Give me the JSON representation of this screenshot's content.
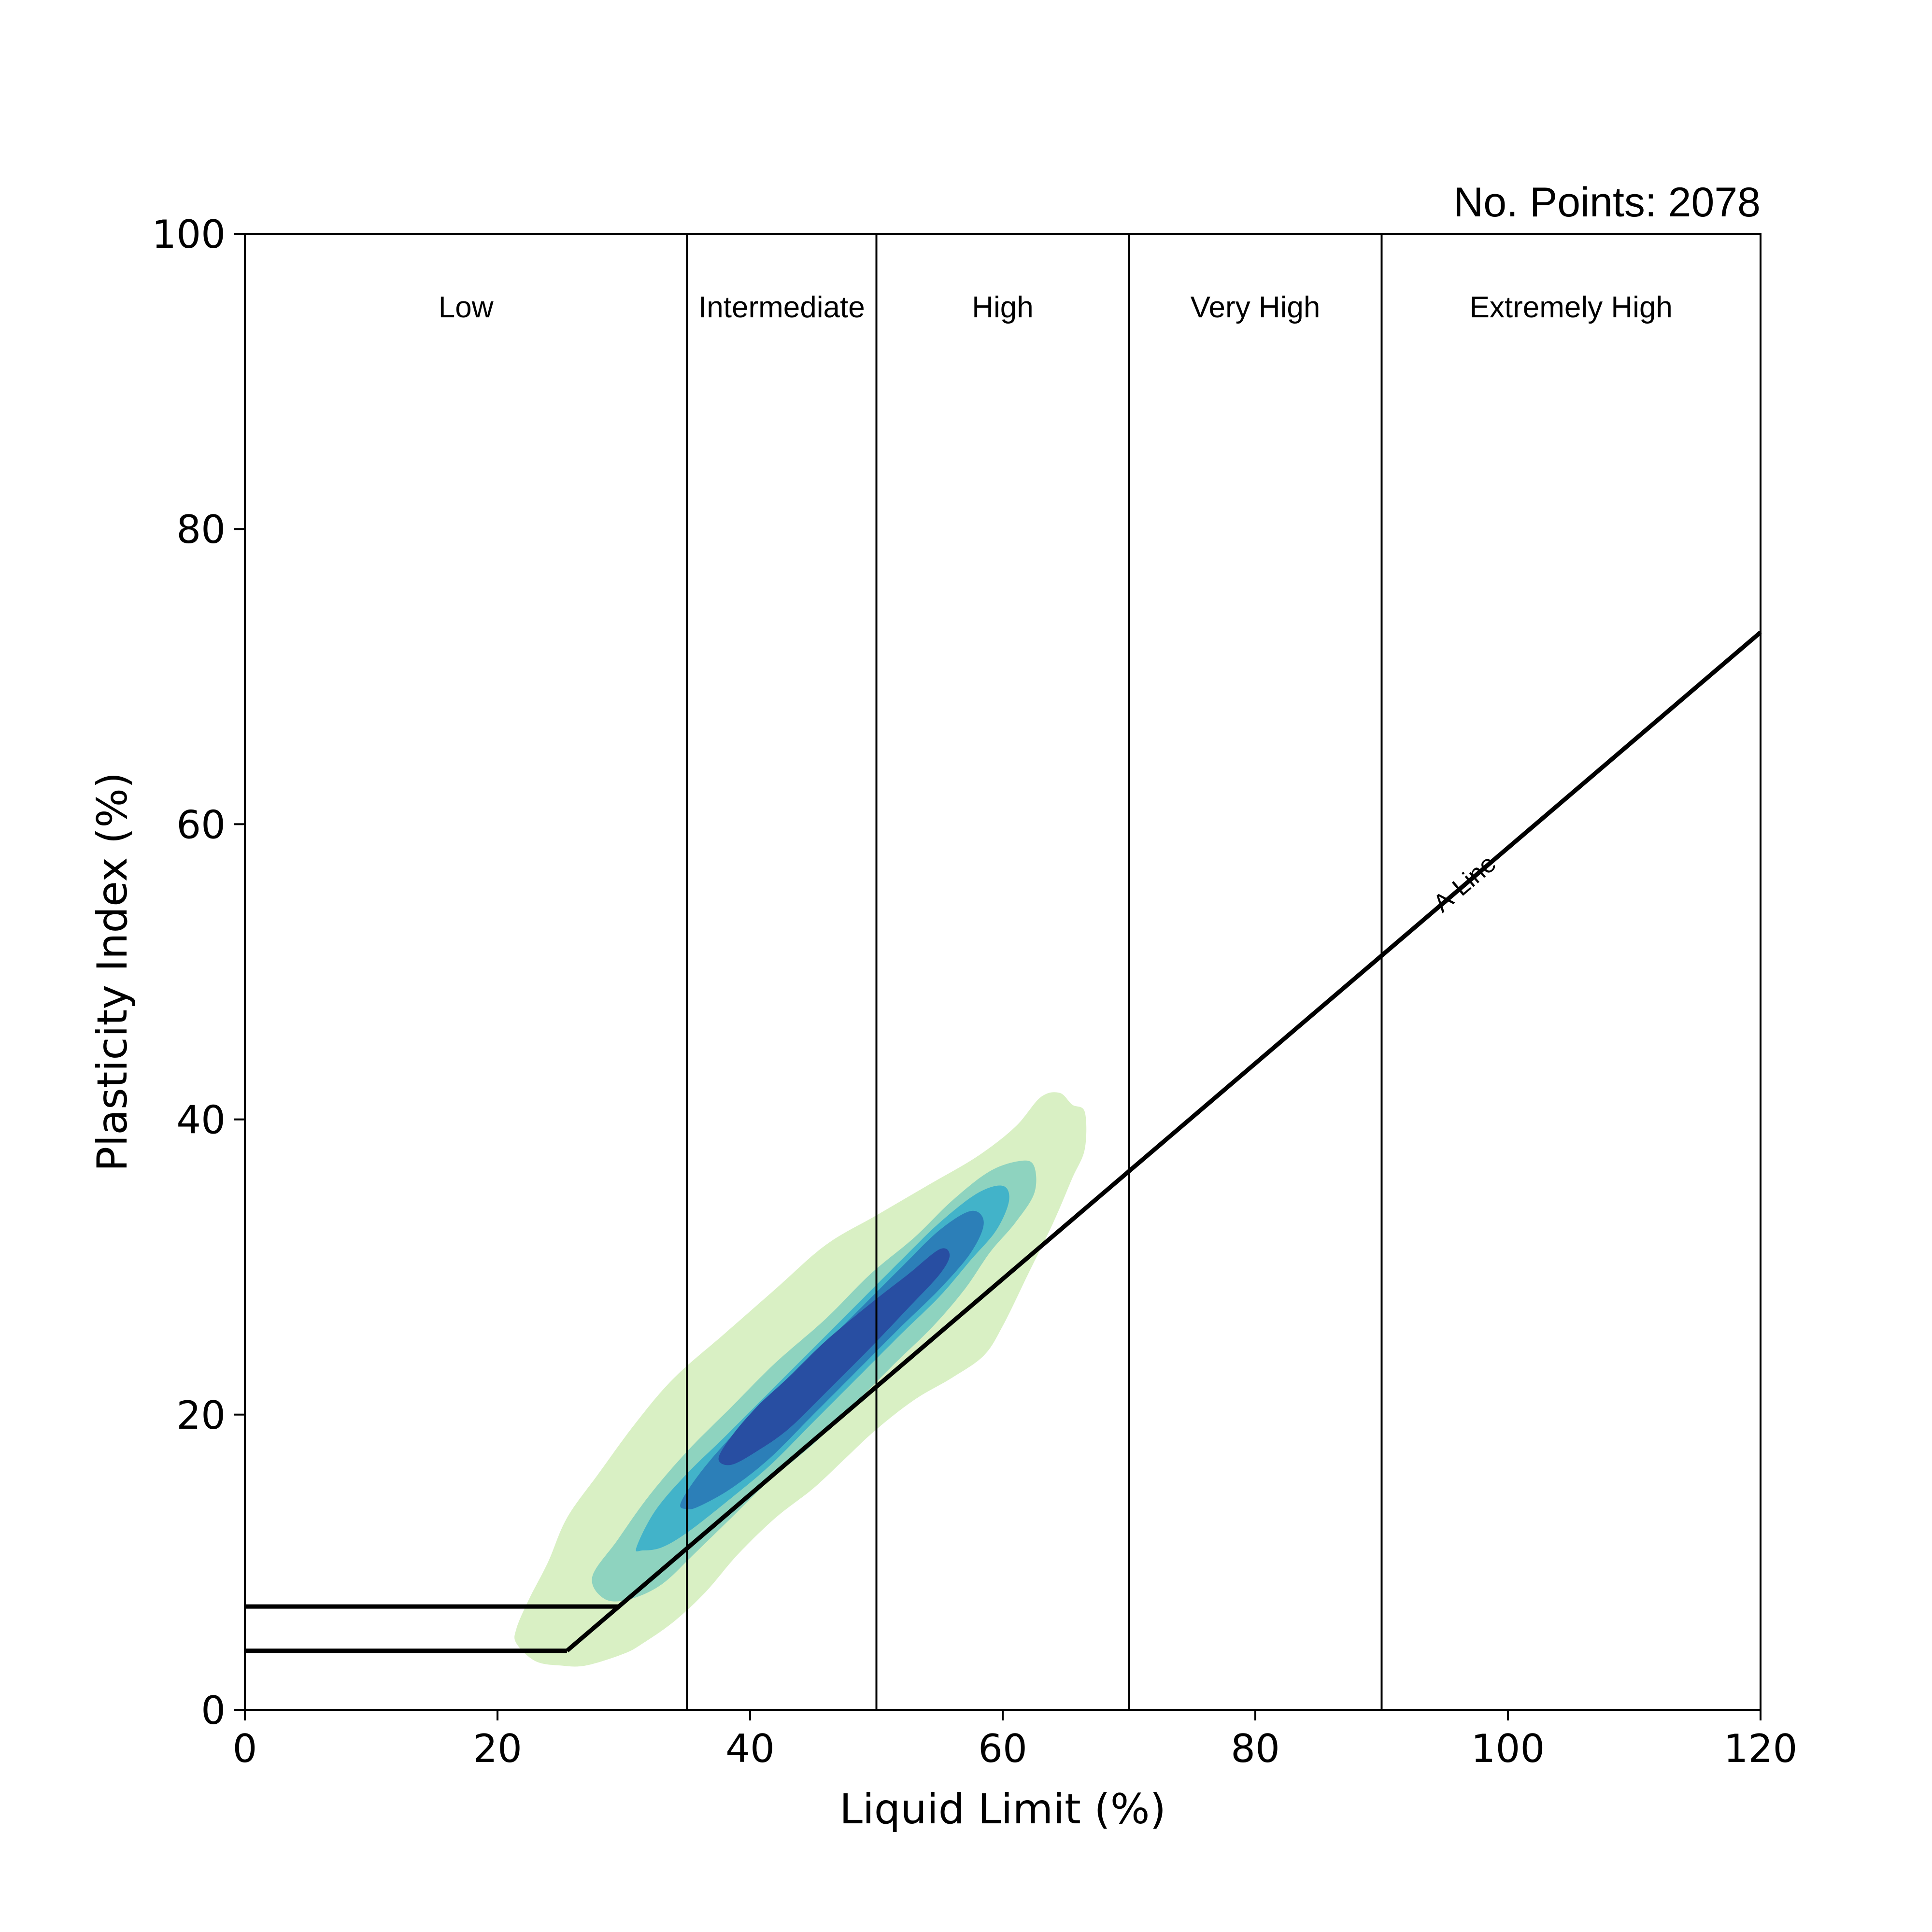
{
  "chart_data": {
    "type": "contour",
    "xlabel": "Liquid Limit (%)",
    "ylabel": "Plasticity Index (%)",
    "xlim": [
      0,
      120
    ],
    "ylim": [
      0,
      100
    ],
    "xticks": [
      0,
      20,
      40,
      60,
      80,
      100,
      120
    ],
    "yticks": [
      0,
      20,
      40,
      60,
      80,
      100
    ],
    "grid": false,
    "annotation": "No. Points: 2078",
    "regions": [
      {
        "label": "Low",
        "x_from": 0,
        "x_to": 35
      },
      {
        "label": "Intermediate",
        "x_from": 35,
        "x_to": 50
      },
      {
        "label": "High",
        "x_from": 50,
        "x_to": 70
      },
      {
        "label": "Very High",
        "x_from": 70,
        "x_to": 90
      },
      {
        "label": "Extremely High",
        "x_from": 90,
        "x_to": 120
      }
    ],
    "region_boundaries_x": [
      35,
      50,
      70,
      90
    ],
    "a_line": {
      "label": "A-Line",
      "points": [
        [
          25.5,
          4
        ],
        [
          120,
          73
        ]
      ]
    },
    "zone_lines": [
      {
        "points": [
          [
            0,
            7
          ],
          [
            29.6,
            7
          ]
        ]
      },
      {
        "points": [
          [
            0,
            4
          ],
          [
            25.5,
            4
          ]
        ]
      }
    ],
    "density_levels": [
      {
        "color": "#d9f0c4",
        "points": [
          [
            21.5,
            5.5
          ],
          [
            22.5,
            7.5
          ],
          [
            24,
            10
          ],
          [
            25.5,
            13
          ],
          [
            28,
            16
          ],
          [
            31,
            19.5
          ],
          [
            34,
            22.5
          ],
          [
            38,
            25.5
          ],
          [
            42,
            28.5
          ],
          [
            46,
            31.5
          ],
          [
            50,
            33.5
          ],
          [
            54,
            35.5
          ],
          [
            58,
            37.5
          ],
          [
            61,
            39.5
          ],
          [
            63,
            41.5
          ],
          [
            64.5,
            41.8
          ],
          [
            65.5,
            41
          ],
          [
            66.5,
            40.5
          ],
          [
            66.5,
            38
          ],
          [
            65.5,
            36
          ],
          [
            64,
            33
          ],
          [
            62,
            29.5
          ],
          [
            60,
            26
          ],
          [
            58.5,
            24
          ],
          [
            56,
            22.5
          ],
          [
            53,
            21
          ],
          [
            50,
            19
          ],
          [
            47.5,
            17
          ],
          [
            45,
            15
          ],
          [
            42,
            13
          ],
          [
            39,
            10.5
          ],
          [
            36.5,
            8
          ],
          [
            34,
            6
          ],
          [
            31.5,
            4.5
          ],
          [
            30,
            3.8
          ],
          [
            27,
            3
          ],
          [
            25,
            3
          ],
          [
            23,
            3.3
          ],
          [
            21.5,
            4.5
          ]
        ]
      },
      {
        "color": "#8ed3bf",
        "points": [
          [
            27.5,
            9
          ],
          [
            29.5,
            11.5
          ],
          [
            32,
            14.5
          ],
          [
            35,
            17.5
          ],
          [
            38.5,
            20.5
          ],
          [
            42,
            23.5
          ],
          [
            46,
            26.5
          ],
          [
            49.5,
            29.5
          ],
          [
            53,
            32
          ],
          [
            56,
            34.5
          ],
          [
            59,
            36.5
          ],
          [
            61.5,
            37.2
          ],
          [
            62.5,
            36.8
          ],
          [
            62.5,
            35
          ],
          [
            61,
            33
          ],
          [
            59,
            31
          ],
          [
            57,
            28.5
          ],
          [
            54.5,
            26
          ],
          [
            51.5,
            23.5
          ],
          [
            48,
            20.5
          ],
          [
            45,
            18
          ],
          [
            41.5,
            15.5
          ],
          [
            38.5,
            13
          ],
          [
            35.5,
            10.5
          ],
          [
            33,
            8.5
          ],
          [
            30.5,
            7.5
          ],
          [
            28.5,
            7.5
          ]
        ]
      },
      {
        "color": "#42b3c9",
        "points": [
          [
            31,
            11
          ],
          [
            32.5,
            13.5
          ],
          [
            35,
            16
          ],
          [
            38,
            18.5
          ],
          [
            41.5,
            21.5
          ],
          [
            45,
            24.5
          ],
          [
            48.5,
            27.5
          ],
          [
            52,
            30.5
          ],
          [
            55,
            33
          ],
          [
            58,
            35
          ],
          [
            60,
            35.5
          ],
          [
            60.5,
            34.5
          ],
          [
            59.5,
            32.5
          ],
          [
            57.5,
            30.5
          ],
          [
            55,
            28
          ],
          [
            52,
            25.5
          ],
          [
            48.5,
            22.5
          ],
          [
            45,
            19.5
          ],
          [
            41.5,
            16.5
          ],
          [
            38,
            14
          ],
          [
            35,
            12
          ],
          [
            33,
            11
          ],
          [
            31.5,
            10.8
          ]
        ]
      },
      {
        "color": "#2c7fb8",
        "points": [
          [
            34.5,
            14
          ],
          [
            36,
            16
          ],
          [
            38.5,
            18.5
          ],
          [
            41.5,
            21
          ],
          [
            45,
            24
          ],
          [
            48.5,
            27
          ],
          [
            52,
            30
          ],
          [
            55,
            32.5
          ],
          [
            57.5,
            33.8
          ],
          [
            58.5,
            33
          ],
          [
            57.5,
            31
          ],
          [
            55,
            28.5
          ],
          [
            52,
            26
          ],
          [
            48.5,
            23
          ],
          [
            45,
            20
          ],
          [
            41.5,
            17
          ],
          [
            38.5,
            15
          ],
          [
            36,
            13.8
          ],
          [
            35,
            13.6
          ]
        ]
      },
      {
        "color": "#284ea2",
        "points": [
          [
            37.5,
            17
          ],
          [
            38.5,
            18.5
          ],
          [
            40.5,
            20.5
          ],
          [
            43,
            22.5
          ],
          [
            46,
            25
          ],
          [
            49.5,
            27.5
          ],
          [
            52.5,
            29.5
          ],
          [
            55,
            31.2
          ],
          [
            55.8,
            30.8
          ],
          [
            55,
            29.5
          ],
          [
            52.5,
            27.2
          ],
          [
            49.5,
            24.5
          ],
          [
            46,
            21.5
          ],
          [
            43,
            19
          ],
          [
            40.5,
            17.5
          ],
          [
            38.5,
            16.6
          ]
        ]
      }
    ]
  }
}
